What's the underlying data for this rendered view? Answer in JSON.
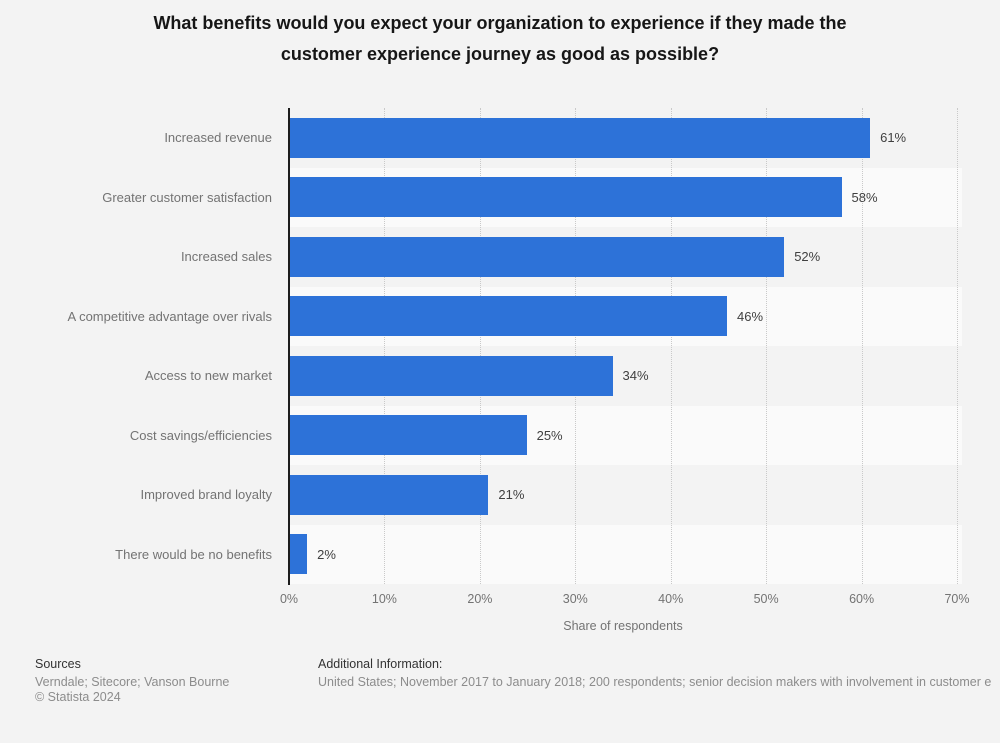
{
  "title": "What benefits would you expect your organization to experience if they made the customer experience journey as good as possible?",
  "title_lines": [
    "What benefits would you expect your organization to experience if they made the",
    "customer experience journey as good as possible?"
  ],
  "chart_data": {
    "type": "bar",
    "orientation": "horizontal",
    "categories": [
      "Increased revenue",
      "Greater customer satisfaction",
      "Increased sales",
      "A competitive advantage over rivals",
      "Access to new market",
      "Cost savings/efficiencies",
      "Improved brand loyalty",
      "There would be no benefits"
    ],
    "values": [
      61,
      58,
      52,
      46,
      34,
      25,
      21,
      2
    ],
    "value_labels": [
      "61%",
      "58%",
      "52%",
      "46%",
      "34%",
      "25%",
      "21%",
      "2%"
    ],
    "xlabel": "Share of respondents",
    "x_ticks": [
      "0%",
      "10%",
      "20%",
      "30%",
      "40%",
      "50%",
      "60%",
      "70%"
    ],
    "xlim": [
      0,
      70
    ],
    "grid": "vertical-dotted",
    "legend": "none",
    "bar_color": "#2d72d8",
    "stripe_color": "#fafafa",
    "gridline_color": "#c9c9c9"
  },
  "footer": {
    "sources_heading": "Sources",
    "sources_text": "Verndale; Sitecore; Vanson Bourne",
    "copyright": "© Statista 2024",
    "additional_heading": "Additional Information:",
    "additional_text": "United States; November 2017 to January 2018; 200 respondents; senior decision makers with involvement in customer e"
  }
}
